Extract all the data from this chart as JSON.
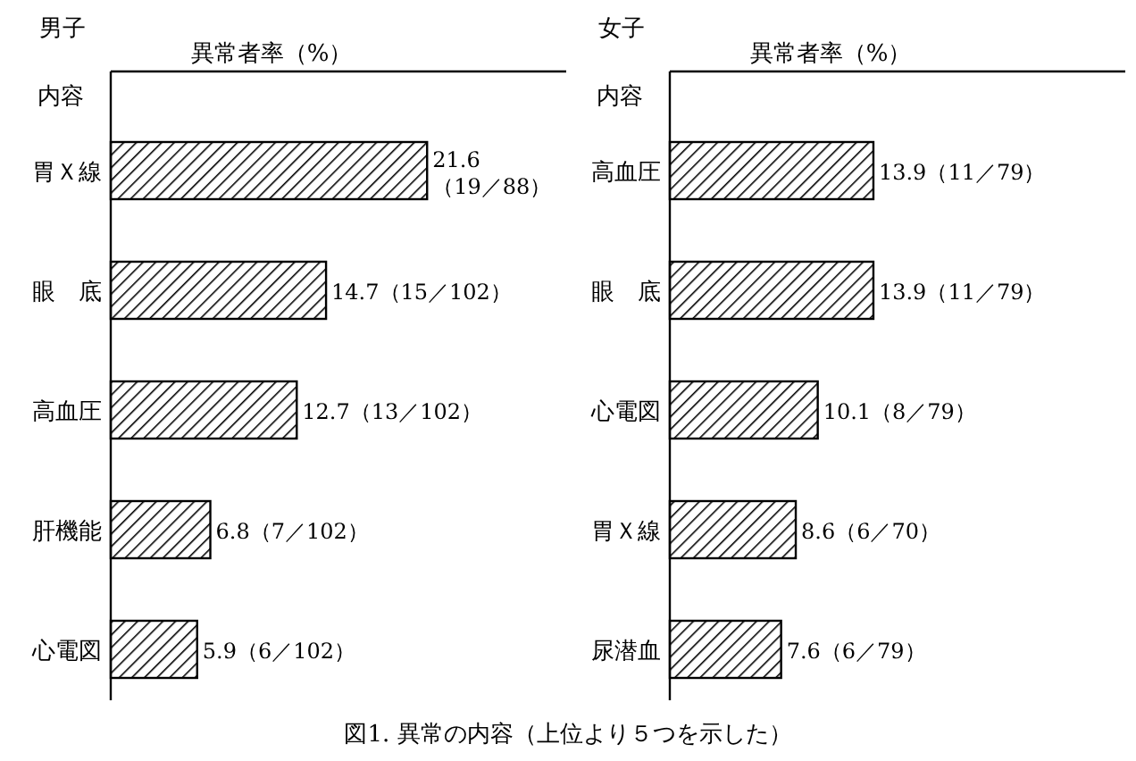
{
  "chart_data": [
    {
      "type": "bar",
      "orientation": "horizontal",
      "title": "男子",
      "xlabel": "異常者率（%）",
      "ylabel": "内容",
      "categories": [
        "胃Ｘ線",
        "眼　底",
        "高血圧",
        "肝機能",
        "心電図"
      ],
      "values": [
        21.6,
        14.7,
        12.7,
        6.8,
        5.9
      ],
      "value_labels": [
        "21.6\n（19／88）",
        "14.7（15／102）",
        "12.7（13／102）",
        "6.8（7／102）",
        "5.9（6／102）"
      ],
      "color": "#000000",
      "annotations": [
        "図1. 異常の内容（上位より５つを示した）"
      ]
    },
    {
      "type": "bar",
      "orientation": "horizontal",
      "title": "女子",
      "xlabel": "異常者率（%）",
      "ylabel": "内容",
      "categories": [
        "高血圧",
        "眼　底",
        "心電図",
        "胃Ｘ線",
        "尿潜血"
      ],
      "values": [
        13.9,
        13.9,
        10.1,
        8.6,
        7.6
      ],
      "value_labels": [
        "13.9（11／79）",
        "13.9（11／79）",
        "10.1（8／79）",
        "8.6（6／70）",
        "7.6（6／79）"
      ],
      "color": "#000000"
    }
  ]
}
